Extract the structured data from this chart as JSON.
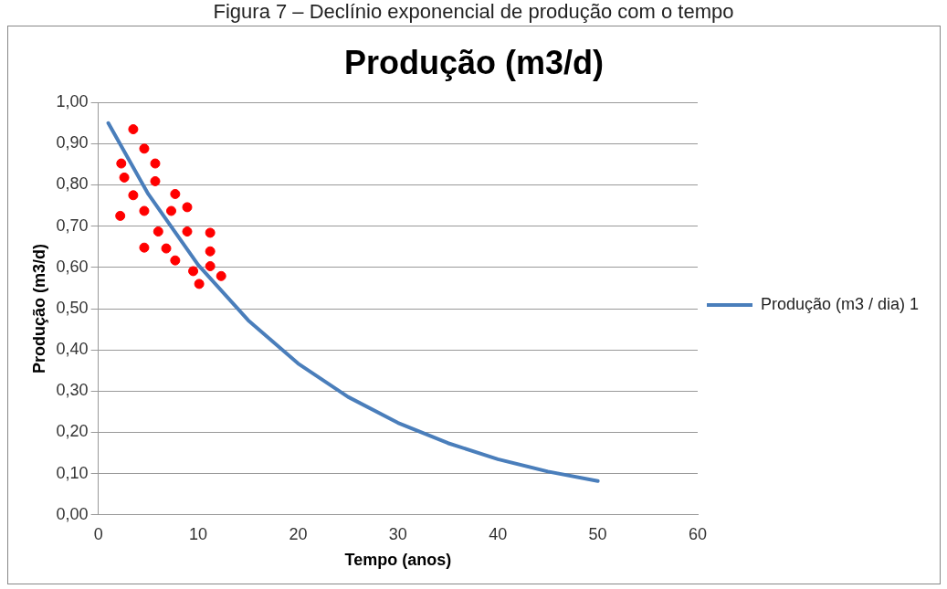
{
  "chart_data": {
    "type": "scatter",
    "title": "Produção (m3/d)",
    "xlabel": "Tempo (anos)",
    "ylabel": "Produção (m3/d)",
    "annotations": [
      "Figura 7 – Declínio exponencial de produção com o tempo"
    ],
    "xlim": [
      0,
      60
    ],
    "xticks": [
      0,
      10,
      20,
      30,
      40,
      50,
      60
    ],
    "ylim": [
      0,
      1
    ],
    "yticks": [
      {
        "value": 0,
        "label": "0,00"
      },
      {
        "value": 0.1,
        "label": "0,10"
      },
      {
        "value": 0.2,
        "label": "0,20"
      },
      {
        "value": 0.3,
        "label": "0,30"
      },
      {
        "value": 0.4,
        "label": "0,40"
      },
      {
        "value": 0.5,
        "label": "0,50"
      },
      {
        "value": 0.6,
        "label": "0,60"
      },
      {
        "value": 0.7,
        "label": "0,70"
      },
      {
        "value": 0.8,
        "label": "0,80"
      },
      {
        "value": 0.9,
        "label": "0,90"
      },
      {
        "value": 1,
        "label": "1,00"
      }
    ],
    "grid": "y",
    "legend": "right",
    "marker": "circle",
    "series": [
      {
        "color": "#ff0000",
        "x": [
          3.5,
          4.6,
          2.3,
          5.7,
          2.6,
          5.7,
          3.5,
          7.7,
          4.6,
          7.3,
          8.9,
          2.2,
          6.0,
          8.9,
          11.2,
          4.6,
          6.8,
          11.2,
          7.7,
          9.5,
          11.2,
          12.3,
          10.1
        ],
        "values": [
          0.935,
          0.888,
          0.852,
          0.852,
          0.818,
          0.809,
          0.775,
          0.778,
          0.737,
          0.737,
          0.746,
          0.725,
          0.687,
          0.687,
          0.684,
          0.648,
          0.646,
          0.639,
          0.617,
          0.591,
          0.603,
          0.579,
          0.56
        ]
      },
      {
        "type": "line",
        "name": "Produção (m3 / dia) 1",
        "color": "#4a7ebb",
        "marker": "none",
        "x": [
          1,
          5,
          10,
          15,
          20,
          25,
          30,
          35,
          40,
          45,
          50
        ],
        "values": [
          0.95,
          0.778,
          0.606,
          0.472,
          0.367,
          0.286,
          0.223,
          0.174,
          0.135,
          0.105,
          0.082
        ]
      }
    ]
  }
}
